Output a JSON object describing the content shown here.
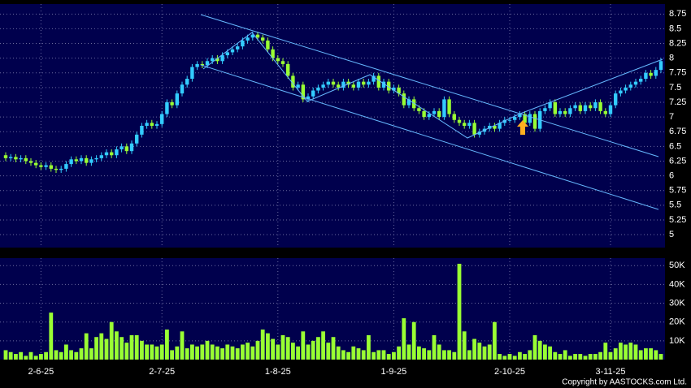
{
  "chart_data": [
    {
      "type": "candlestick",
      "categories": [
        null,
        null,
        null,
        null,
        null,
        null,
        null,
        "2-6-25",
        null,
        null,
        null,
        null,
        null,
        null,
        null,
        null,
        null,
        null,
        null,
        null,
        null,
        null,
        null,
        null,
        null,
        null,
        null,
        null,
        null,
        null,
        null,
        "2-7-25",
        null,
        null,
        null,
        null,
        null,
        null,
        null,
        null,
        null,
        null,
        null,
        null,
        null,
        null,
        null,
        null,
        null,
        null,
        null,
        null,
        null,
        null,
        "1-8-25",
        null,
        null,
        null,
        null,
        null,
        null,
        null,
        null,
        null,
        null,
        null,
        null,
        null,
        null,
        null,
        null,
        null,
        null,
        null,
        null,
        null,
        null,
        "1-9-25",
        null,
        null,
        null,
        null,
        null,
        null,
        null,
        null,
        null,
        null,
        null,
        null,
        null,
        null,
        null,
        null,
        null,
        null,
        null,
        null,
        null,
        null,
        "2-10-25",
        null,
        null,
        null,
        null,
        null,
        null,
        null,
        null,
        null,
        null,
        null,
        null,
        null,
        null,
        null,
        null,
        null,
        null,
        null,
        "3-11-25",
        null,
        null,
        null,
        null,
        null,
        null,
        null,
        null,
        null,
        null
      ],
      "open": [
        6.35,
        6.3,
        6.32,
        6.28,
        6.3,
        6.25,
        6.22,
        6.18,
        6.15,
        6.18,
        6.12,
        6.1,
        6.12,
        6.2,
        6.28,
        6.25,
        6.3,
        6.22,
        6.28,
        6.3,
        6.35,
        6.4,
        6.35,
        6.45,
        6.5,
        6.42,
        6.55,
        6.7,
        6.85,
        6.9,
        6.85,
        6.88,
        7.05,
        7.25,
        7.2,
        7.4,
        7.55,
        7.65,
        7.85,
        7.9,
        7.88,
        7.95,
        8.0,
        7.95,
        8.05,
        8.1,
        8.15,
        8.2,
        8.3,
        8.35,
        8.4,
        8.35,
        8.3,
        8.15,
        8.0,
        7.95,
        7.9,
        7.7,
        7.5,
        7.55,
        7.3,
        7.35,
        7.45,
        7.5,
        7.55,
        7.6,
        7.55,
        7.5,
        7.6,
        7.55,
        7.5,
        7.6,
        7.55,
        7.6,
        7.7,
        7.5,
        7.6,
        7.45,
        7.5,
        7.4,
        7.2,
        7.3,
        7.15,
        7.1,
        7.0,
        7.05,
        7.1,
        7.0,
        7.3,
        7.05,
        6.95,
        6.9,
        6.85,
        6.9,
        6.7,
        6.75,
        6.8,
        6.85,
        6.8,
        6.9,
        6.95,
        6.95,
        7.0,
        7.05,
        6.9,
        7.05,
        6.8,
        7.1,
        7.15,
        7.25,
        7.05,
        7.1,
        7.05,
        7.15,
        7.2,
        7.1,
        7.2,
        7.15,
        7.25,
        7.1,
        7.05,
        7.2,
        7.4,
        7.45,
        7.5,
        7.55,
        7.6,
        7.65,
        7.75,
        7.7,
        7.8
      ],
      "high": [
        6.4,
        6.37,
        6.37,
        6.35,
        6.35,
        6.3,
        6.27,
        6.23,
        6.23,
        6.23,
        6.17,
        6.17,
        6.25,
        6.33,
        6.33,
        6.35,
        6.35,
        6.33,
        6.35,
        6.4,
        6.45,
        6.45,
        6.5,
        6.55,
        6.55,
        6.6,
        6.75,
        6.9,
        6.95,
        6.95,
        6.93,
        7.1,
        7.3,
        7.3,
        7.45,
        7.6,
        7.7,
        7.9,
        7.95,
        7.95,
        8.0,
        8.05,
        8.05,
        8.1,
        8.15,
        8.2,
        8.25,
        8.35,
        8.4,
        8.45,
        8.45,
        8.4,
        8.35,
        8.2,
        8.05,
        8.0,
        7.95,
        7.75,
        7.6,
        7.6,
        7.4,
        7.5,
        7.55,
        7.6,
        7.65,
        7.65,
        7.6,
        7.65,
        7.65,
        7.6,
        7.65,
        7.65,
        7.65,
        7.75,
        7.75,
        7.65,
        7.65,
        7.55,
        7.55,
        7.45,
        7.35,
        7.35,
        7.2,
        7.15,
        7.1,
        7.15,
        7.15,
        7.35,
        7.35,
        7.1,
        7.0,
        6.95,
        6.95,
        6.95,
        6.8,
        6.85,
        6.9,
        6.9,
        6.95,
        7.0,
        7.0,
        7.05,
        7.1,
        7.1,
        7.1,
        7.1,
        7.15,
        7.2,
        7.3,
        7.3,
        7.15,
        7.15,
        7.2,
        7.25,
        7.25,
        7.25,
        7.25,
        7.3,
        7.3,
        7.15,
        7.25,
        7.45,
        7.5,
        7.55,
        7.6,
        7.65,
        7.7,
        7.8,
        7.8,
        7.85,
        8.0
      ],
      "low": [
        6.25,
        6.25,
        6.23,
        6.23,
        6.2,
        6.17,
        6.13,
        6.1,
        6.1,
        6.07,
        6.05,
        6.05,
        6.07,
        6.15,
        6.2,
        6.2,
        6.17,
        6.17,
        6.23,
        6.25,
        6.3,
        6.3,
        6.3,
        6.4,
        6.37,
        6.37,
        6.5,
        6.65,
        6.8,
        6.8,
        6.8,
        6.83,
        7.0,
        7.15,
        7.15,
        7.35,
        7.5,
        7.6,
        7.8,
        7.83,
        7.83,
        7.9,
        7.9,
        7.9,
        8.0,
        8.05,
        8.1,
        8.15,
        8.25,
        8.3,
        8.3,
        8.25,
        8.1,
        7.95,
        7.9,
        7.85,
        7.65,
        7.45,
        7.45,
        7.25,
        7.25,
        7.3,
        7.4,
        7.45,
        7.5,
        7.5,
        7.45,
        7.45,
        7.5,
        7.45,
        7.45,
        7.5,
        7.5,
        7.55,
        7.45,
        7.45,
        7.4,
        7.4,
        7.35,
        7.15,
        7.15,
        7.1,
        7.05,
        6.95,
        6.95,
        7.0,
        6.95,
        6.95,
        7.0,
        6.9,
        6.85,
        6.8,
        6.8,
        6.65,
        6.65,
        6.7,
        6.75,
        6.75,
        6.75,
        6.85,
        6.9,
        6.9,
        6.95,
        6.85,
        6.85,
        6.75,
        6.75,
        7.05,
        7.1,
        7.0,
        7.0,
        7.0,
        7.0,
        7.1,
        7.05,
        7.05,
        7.1,
        7.1,
        7.05,
        7.0,
        7.0,
        7.15,
        7.35,
        7.4,
        7.45,
        7.5,
        7.55,
        7.6,
        7.65,
        7.65,
        7.75
      ],
      "close": [
        6.3,
        6.32,
        6.28,
        6.3,
        6.25,
        6.22,
        6.18,
        6.15,
        6.18,
        6.12,
        6.1,
        6.12,
        6.2,
        6.28,
        6.25,
        6.3,
        6.22,
        6.28,
        6.3,
        6.35,
        6.4,
        6.35,
        6.45,
        6.5,
        6.42,
        6.55,
        6.7,
        6.85,
        6.9,
        6.85,
        6.88,
        7.05,
        7.25,
        7.2,
        7.4,
        7.55,
        7.65,
        7.85,
        7.9,
        7.88,
        7.95,
        8.0,
        7.95,
        8.05,
        8.1,
        8.15,
        8.2,
        8.3,
        8.35,
        8.4,
        8.35,
        8.3,
        8.15,
        8.0,
        7.95,
        7.9,
        7.7,
        7.5,
        7.55,
        7.3,
        7.35,
        7.45,
        7.5,
        7.55,
        7.6,
        7.55,
        7.5,
        7.6,
        7.55,
        7.5,
        7.6,
        7.55,
        7.6,
        7.7,
        7.5,
        7.6,
        7.45,
        7.5,
        7.4,
        7.2,
        7.3,
        7.15,
        7.1,
        7.0,
        7.05,
        7.1,
        7.0,
        7.3,
        7.05,
        6.95,
        6.9,
        6.85,
        6.9,
        6.7,
        6.75,
        6.8,
        6.85,
        6.8,
        6.9,
        6.95,
        6.95,
        7.0,
        7.05,
        6.9,
        7.05,
        6.8,
        7.1,
        7.15,
        7.25,
        7.05,
        7.1,
        7.05,
        7.15,
        7.2,
        7.1,
        7.2,
        7.15,
        7.25,
        7.1,
        7.05,
        7.2,
        7.4,
        7.45,
        7.5,
        7.55,
        7.6,
        7.65,
        7.75,
        7.7,
        7.8,
        7.95
      ],
      "up_color": "#33ccff",
      "down_color": "#99ff33",
      "ylim": [
        4.78,
        8.92
      ],
      "yticks": [
        5,
        5.25,
        5.5,
        5.75,
        6,
        6.25,
        6.5,
        6.75,
        7,
        7.25,
        7.5,
        7.75,
        8,
        8.25,
        8.5,
        8.75
      ],
      "grid": true
    },
    {
      "type": "bar",
      "values": [
        5000,
        4000,
        3000,
        4000,
        2000,
        4000,
        2000,
        3000,
        4000,
        25000,
        5000,
        4000,
        8000,
        5000,
        4000,
        6000,
        14000,
        6000,
        12000,
        14000,
        11000,
        20000,
        15000,
        12000,
        9000,
        13000,
        13000,
        10000,
        8000,
        8000,
        7000,
        8000,
        16000,
        5000,
        7000,
        15000,
        6000,
        8000,
        7000,
        8000,
        10000,
        8000,
        7000,
        6000,
        8000,
        7000,
        6000,
        8000,
        9000,
        7000,
        10000,
        16000,
        14000,
        11000,
        8000,
        13000,
        12000,
        9000,
        7000,
        15000,
        8000,
        10000,
        12000,
        15000,
        9000,
        12000,
        7000,
        5000,
        4000,
        7000,
        6000,
        5000,
        13000,
        4000,
        5000,
        5000,
        3000,
        4000,
        7000,
        22000,
        8000,
        20000,
        7000,
        6000,
        5000,
        13000,
        8000,
        5000,
        5000,
        4000,
        51000,
        15000,
        5000,
        11000,
        9000,
        7000,
        8000,
        20000,
        3000,
        2000,
        3000,
        2000,
        4000,
        3000,
        5000,
        13000,
        10000,
        8000,
        7000,
        4000,
        3000,
        5000,
        2000,
        3000,
        3000,
        2000,
        3000,
        3000,
        4000,
        9000,
        4000,
        6000,
        9000,
        8000,
        9000,
        8000,
        5000,
        6000,
        6000,
        5000,
        3000
      ],
      "color": "#99ff33",
      "ylim": [
        0,
        54000
      ],
      "yticks": [
        {
          "value": 10000,
          "label": "10K"
        },
        {
          "value": 20000,
          "label": "20K"
        },
        {
          "value": 30000,
          "label": "30K"
        },
        {
          "value": 40000,
          "label": "40K"
        },
        {
          "value": 50000,
          "label": "50K"
        }
      ],
      "grid": true
    }
  ],
  "copyright": "Copyright by AASTOCKS.com Ltd."
}
